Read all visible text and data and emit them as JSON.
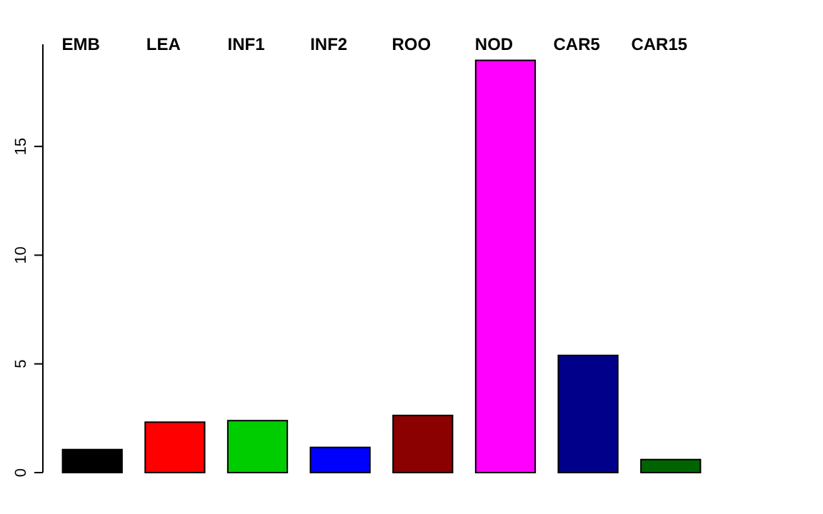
{
  "chart_data": {
    "type": "bar",
    "categories": [
      "EMB",
      "LEA",
      "INF1",
      "INF2",
      "ROO",
      "NOD",
      "CAR5",
      "CAR15"
    ],
    "values": [
      1.06,
      2.32,
      2.39,
      1.16,
      2.63,
      18.96,
      5.39,
      0.6
    ],
    "colors": [
      "#000000",
      "#ff0000",
      "#00cd00",
      "#0000ff",
      "#8b0000",
      "#ff00ff",
      "#00008b",
      "#006400"
    ],
    "ylim": [
      0,
      19.7
    ],
    "yticks": [
      0,
      5,
      10,
      15
    ],
    "grid": false
  }
}
